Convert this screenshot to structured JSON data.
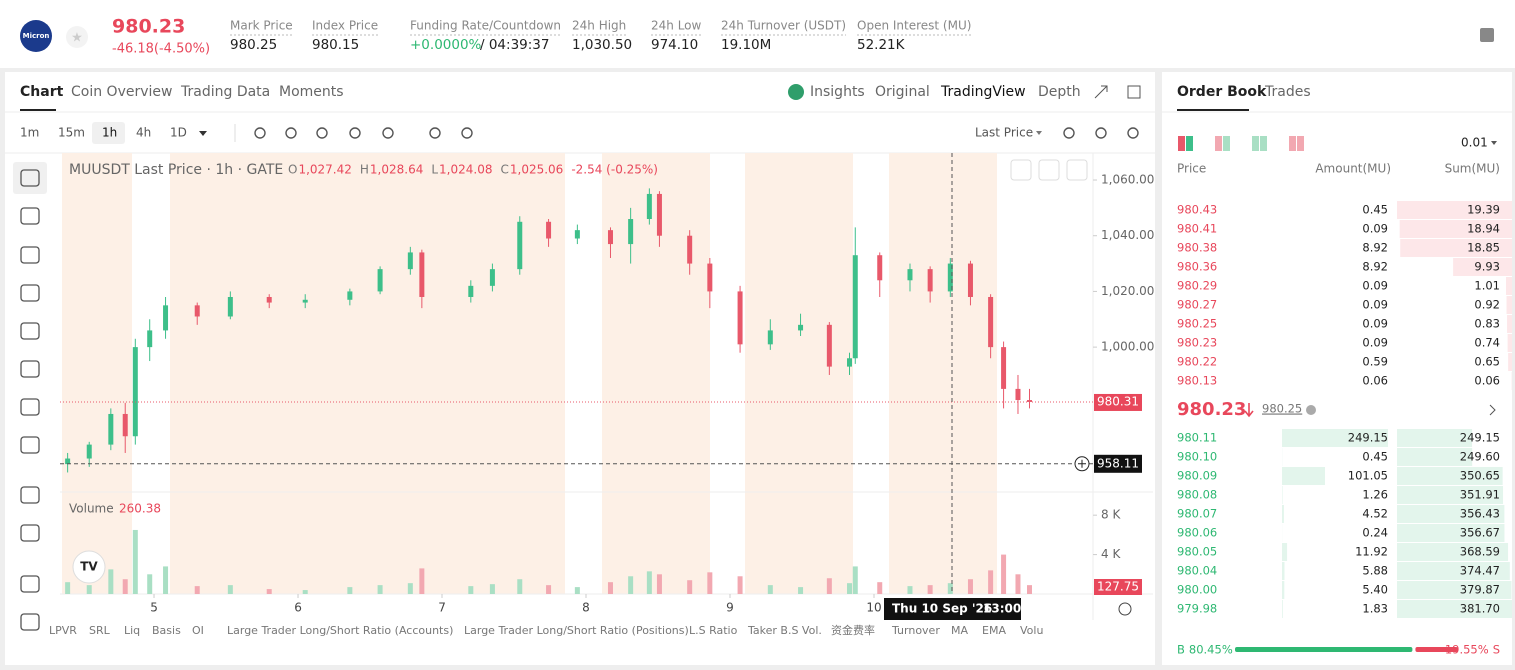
{
  "header": {
    "logo": "Micron",
    "price": "980.23",
    "change": "-46.18(-4.50%)",
    "stats": [
      {
        "label": "Mark Price",
        "value": "980.25"
      },
      {
        "label": "Index Price",
        "value": "980.15"
      },
      {
        "label": "Funding Rate/Countdown",
        "value": "+0.0000%",
        "extra": "/ 04:39:37"
      },
      {
        "label": "24h High",
        "value": "1,030.50"
      },
      {
        "label": "24h Low",
        "value": "974.10"
      },
      {
        "label": "24h Turnover (USDT)",
        "value": "19.10M"
      },
      {
        "label": "Open Interest (MU)",
        "value": "52.21K"
      }
    ]
  },
  "tabs": [
    "Chart",
    "Coin Overview",
    "Trading Data",
    "Moments"
  ],
  "views": [
    "Insights",
    "Original",
    "TradingView",
    "Depth"
  ],
  "intervals": [
    "1m",
    "15m",
    "1h",
    "4h",
    "1D"
  ],
  "price_source": "Last Price",
  "indicators": [
    "LPVR",
    "SRL",
    "Liq",
    "Basis",
    "OI",
    "Large Trader Long/Short Ratio (Accounts)",
    "Large Trader Long/Short Ratio (Positions)",
    "L.S Ratio",
    "Taker B.S Vol.",
    "资金费率",
    "Turnover",
    "MA",
    "EMA",
    "Volu"
  ],
  "chart_data": {
    "type": "candlestick",
    "legend": {
      "name": "MUUSDT Last Price · 1h · GATE",
      "ohlc": [
        {
          "k": "O",
          "v": "1,027.42"
        },
        {
          "k": "H",
          "v": "1,028.64"
        },
        {
          "k": "L",
          "v": "1,024.08"
        },
        {
          "k": "C",
          "v": "1,025.06"
        }
      ],
      "change": "-2.54 (-0.25%)"
    },
    "volume_label": "Volume",
    "volume_value": 260.38,
    "up_color": "#3dbf8a",
    "down_color": "#e8586a",
    "up_volume_color": "#a9dfc4",
    "down_volume_color": "#f2a8b1",
    "x": [
      4.4,
      4.55,
      4.7,
      4.8,
      4.87,
      4.97,
      5.08,
      5.3,
      5.53,
      5.8,
      6.05,
      6.36,
      6.57,
      6.78,
      6.86,
      7.2,
      7.35,
      7.54,
      7.74,
      7.94,
      8.17,
      8.31,
      8.44,
      8.51,
      8.72,
      8.86,
      9.07,
      9.28,
      9.49,
      9.69,
      9.83,
      9.87,
      10.04,
      10.25,
      10.39,
      10.53,
      10.67,
      10.81,
      10.9,
      11.0,
      11.08
    ],
    "open": [
      958,
      960,
      965,
      976,
      968,
      1000,
      1006,
      1015,
      1011,
      1018,
      1016,
      1017,
      1020,
      1028,
      1034,
      1018,
      1022,
      1028,
      1045,
      1039,
      1042,
      1037,
      1046,
      1055,
      1040,
      1030,
      1020,
      1001,
      1006,
      1008,
      993,
      996,
      1033,
      1024,
      1028,
      1020,
      1030,
      1018,
      1000,
      985,
      981
    ],
    "high": [
      962,
      966,
      978,
      980,
      1003,
      1010,
      1018,
      1016,
      1020,
      1019,
      1019,
      1021,
      1029,
      1036,
      1035,
      1024,
      1030,
      1047,
      1046,
      1044,
      1043,
      1050,
      1057,
      1056,
      1042,
      1032,
      1022,
      1010,
      1012,
      1009,
      998,
      1043,
      1034,
      1030,
      1029,
      1032,
      1031,
      1019,
      1002,
      990,
      985
    ],
    "low": [
      955,
      957,
      963,
      962,
      965,
      995,
      1003,
      1008,
      1010,
      1014,
      1014,
      1015,
      1019,
      1026,
      1014,
      1016,
      1020,
      1026,
      1036,
      1037,
      1032,
      1030,
      1044,
      1036,
      1026,
      1014,
      998,
      999,
      1004,
      990,
      990,
      994,
      1018,
      1020,
      1016,
      1018,
      1015,
      996,
      978,
      976,
      978
    ],
    "close": [
      960,
      965,
      976,
      968,
      1000,
      1006,
      1015,
      1011,
      1018,
      1016,
      1017,
      1020,
      1028,
      1034,
      1018,
      1022,
      1028,
      1045,
      1039,
      1042,
      1037,
      1046,
      1055,
      1040,
      1030,
      1020,
      1001,
      1006,
      1008,
      993,
      996,
      1033,
      1024,
      1028,
      1020,
      1030,
      1018,
      1000,
      985,
      981,
      980.31
    ],
    "volume": [
      1200,
      900,
      2500,
      1500,
      6500,
      2000,
      2800,
      800,
      900,
      500,
      400,
      700,
      900,
      1100,
      2600,
      800,
      1000,
      1500,
      900,
      700,
      1200,
      1800,
      2300,
      2000,
      1400,
      2200,
      1800,
      900,
      700,
      1600,
      1100,
      2800,
      1200,
      800,
      900,
      1100,
      1500,
      2400,
      4000,
      2000,
      900
    ],
    "xlim": [
      4.347,
      11.521
    ],
    "xticks": [
      5,
      6,
      7,
      8,
      9,
      10
    ],
    "ylim": [
      948.7,
      1069.7
    ],
    "yticks": [
      {
        "value": 1000,
        "label": "1,000.00"
      },
      {
        "value": 1020,
        "label": "1,020.00"
      },
      {
        "value": 1040,
        "label": "1,040.00"
      },
      {
        "value": 1060,
        "label": "1,060.00"
      }
    ],
    "volume_ylim": [
      0,
      10150
    ],
    "volume_ticks": [
      {
        "value": 4000,
        "label": "4 K"
      },
      {
        "value": 8000,
        "label": "8 K"
      }
    ],
    "last_price": 980.31,
    "crosshair_price": 958.11,
    "last_volume": 127.75,
    "crosshair_date": "Thu 10 Sep '26",
    "crosshair_time": "13:00",
    "grid": false
  },
  "order_book": {
    "tabs": [
      "Order Book",
      "Trades"
    ],
    "precision": "0.01",
    "columns": [
      "Price",
      "Amount(MU)",
      "Sum(MU)"
    ],
    "asks": [
      [
        "980.43",
        "0.45",
        "19.39"
      ],
      [
        "980.41",
        "0.09",
        "18.94"
      ],
      [
        "980.38",
        "8.92",
        "18.85"
      ],
      [
        "980.36",
        "8.92",
        "9.93"
      ],
      [
        "980.29",
        "0.09",
        "1.01"
      ],
      [
        "980.27",
        "0.09",
        "0.92"
      ],
      [
        "980.25",
        "0.09",
        "0.83"
      ],
      [
        "980.23",
        "0.09",
        "0.74"
      ],
      [
        "980.22",
        "0.59",
        "0.65"
      ],
      [
        "980.13",
        "0.06",
        "0.06"
      ]
    ],
    "last": "980.23",
    "mark": "980.25",
    "bids": [
      [
        "980.11",
        "249.15",
        "249.15"
      ],
      [
        "980.10",
        "0.45",
        "249.60"
      ],
      [
        "980.09",
        "101.05",
        "350.65"
      ],
      [
        "980.08",
        "1.26",
        "351.91"
      ],
      [
        "980.07",
        "4.52",
        "356.43"
      ],
      [
        "980.06",
        "0.24",
        "356.67"
      ],
      [
        "980.05",
        "11.92",
        "368.59"
      ],
      [
        "980.04",
        "5.88",
        "374.47"
      ],
      [
        "980.00",
        "5.40",
        "379.87"
      ],
      [
        "979.98",
        "1.83",
        "381.70"
      ]
    ],
    "buy_label": "B",
    "buy_ratio": "80.45%",
    "sell_ratio": "19.55%",
    "sell_label": "S"
  }
}
